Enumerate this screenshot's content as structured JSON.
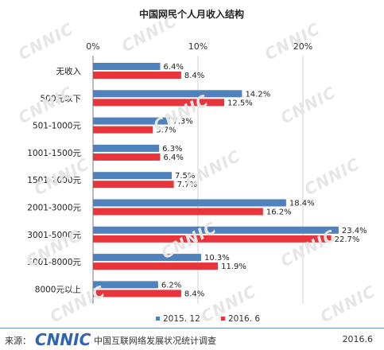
{
  "watermark": "CNNIC",
  "footer": {
    "source_label": "来源：",
    "logo": "CNNIC",
    "org": "中国互联网络发展状况统计调查",
    "date": "2016.6"
  },
  "chart_data": {
    "type": "bar",
    "orientation": "horizontal",
    "title": "中国网民个人月收入结构",
    "categories": [
      "无收入",
      "500元以下",
      "501-1000元",
      "1001-1500元",
      "1501-2000元",
      "2001-3000元",
      "3001-5000元",
      "5001-8000元",
      "8000元以上"
    ],
    "series": [
      {
        "name": "2015. 12",
        "color": "#4f81bd",
        "values": [
          6.4,
          14.2,
          7.3,
          6.3,
          7.5,
          18.4,
          23.4,
          10.3,
          6.2
        ]
      },
      {
        "name": "2016. 6",
        "color": "#e8353b",
        "values": [
          8.4,
          12.5,
          5.7,
          6.4,
          7.7,
          16.2,
          22.7,
          11.9,
          8.4
        ]
      }
    ],
    "x_ticks": [
      "0%",
      "10%",
      "20%"
    ],
    "xlim": [
      0,
      25
    ],
    "value_suffix": "%",
    "grid": true,
    "legend_position": "bottom"
  }
}
